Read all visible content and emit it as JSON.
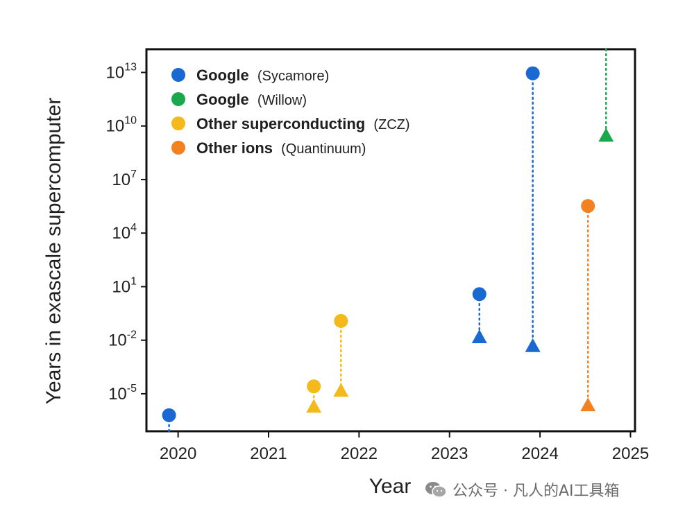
{
  "chart_data": {
    "type": "scatter",
    "xlabel": "Year",
    "ylabel": "Years in exascale supercomputer",
    "x_ticks": [
      "2020",
      "2021",
      "2022",
      "2023",
      "2024",
      "2025"
    ],
    "xlim": [
      2019.65,
      2025.05
    ],
    "y_scale": "log",
    "ylim_exponent": [
      -7.1,
      14.3
    ],
    "y_ticks": [
      {
        "base": "10",
        "exp": "13",
        "value": 10000000000000.0
      },
      {
        "base": "10",
        "exp": "10",
        "value": 10000000000.0
      },
      {
        "base": "10",
        "exp": "7",
        "value": 10000000.0
      },
      {
        "base": "10",
        "exp": "4",
        "value": 10000.0
      },
      {
        "base": "10",
        "exp": "1",
        "value": 10
      },
      {
        "base": "10",
        "exp": "-2",
        "value": 0.01
      },
      {
        "base": "10",
        "exp": "-5",
        "value": 1e-05
      }
    ],
    "legend_position": "top-left",
    "grid": false,
    "series": [
      {
        "name": "Google",
        "detail": "(Sycamore)",
        "color": "#1a68d1",
        "points": [
          {
            "x": 2019.9,
            "circle": 6.3e-07,
            "triangle": null
          },
          {
            "x": 2023.33,
            "circle": 3.8,
            "triangle": 0.015
          },
          {
            "x": 2023.92,
            "circle": 8900000000000.0,
            "triangle": 0.0048
          }
        ]
      },
      {
        "name": "Google",
        "detail": "(Willow)",
        "color": "#1aa84e",
        "points": [
          {
            "x": 2024.73,
            "circle": null,
            "circle_off_chart": true,
            "triangle": 2900000000.0
          }
        ]
      },
      {
        "name": "Other superconducting",
        "detail": "(ZCZ)",
        "color": "#f4b91a",
        "points": [
          {
            "x": 2021.5,
            "circle": 2.6e-05,
            "triangle": 1.9e-06
          },
          {
            "x": 2021.8,
            "circle": 0.12,
            "triangle": 1.5e-05
          }
        ]
      },
      {
        "name": "Other ions",
        "detail": "(Quantinuum)",
        "color": "#f4811f",
        "points": [
          {
            "x": 2024.53,
            "circle": 330000.0,
            "triangle": 2.3e-06
          }
        ]
      }
    ]
  },
  "watermark": {
    "text": "公众号 · 凡人的AI工具箱",
    "icon": "wechat-icon"
  }
}
